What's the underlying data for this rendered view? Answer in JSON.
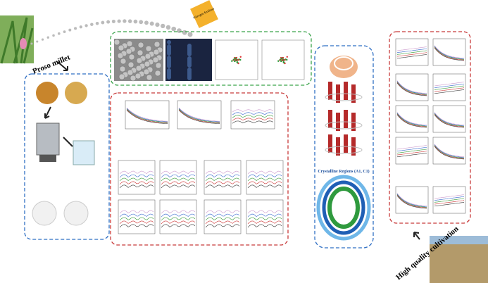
{
  "labels": {
    "crop": "Proso millet",
    "treatment": "Nitrogen fertilizer",
    "crystalline": "Crystalline Regions (A1, C1)",
    "cultivation": "High quality cultivation"
  }
}
